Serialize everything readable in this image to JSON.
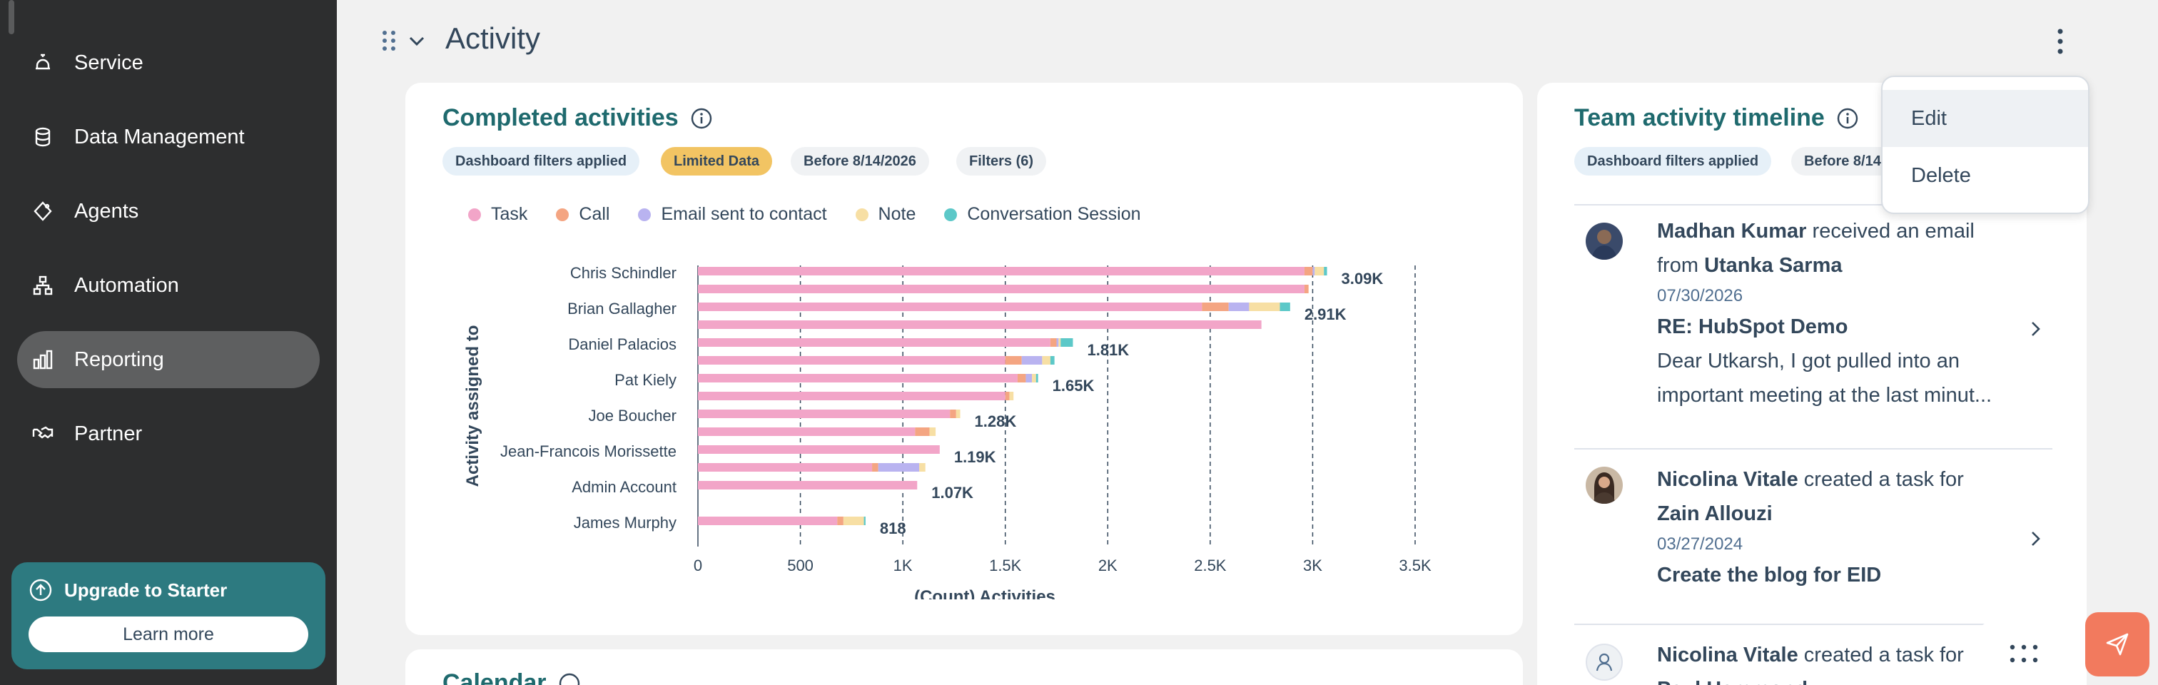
{
  "sidebar": {
    "items": [
      {
        "label": "Service",
        "icon": "bell-icon"
      },
      {
        "label": "Data Management",
        "icon": "database-icon"
      },
      {
        "label": "Agents",
        "icon": "diamond-icon"
      },
      {
        "label": "Automation",
        "icon": "workflow-icon"
      },
      {
        "label": "Reporting",
        "icon": "bar-chart-icon",
        "active": true
      },
      {
        "label": "Partner",
        "icon": "handshake-icon"
      }
    ],
    "upgrade": {
      "title": "Upgrade to Starter",
      "button": "Learn more"
    }
  },
  "section": {
    "title": "Activity"
  },
  "completed_card": {
    "title": "Completed activities",
    "chips": [
      "Dashboard filters applied",
      "Limited Data",
      "Before 8/14/2026",
      "Filters (6)"
    ]
  },
  "timeline_card": {
    "title": "Team activity timeline",
    "chips": [
      "Dashboard filters applied",
      "Before 8/14"
    ],
    "items": [
      {
        "actor": "Madhan Kumar",
        "action": "received an email",
        "prep": "from",
        "target": "Utanka Sarma",
        "date": "07/30/2026",
        "subject": "RE: HubSpot Demo",
        "body1": "Dear Utkarsh,   I got pulled into an",
        "body2": "important meeting at the last minut..."
      },
      {
        "actor": "Nicolina Vitale",
        "action": "created a task for",
        "target": "Zain Allouzi",
        "date": "03/27/2024",
        "subject": "Create the blog for EID"
      },
      {
        "actor": "Nicolina Vitale",
        "action": "created a task for",
        "target": "Paul Hammond"
      }
    ]
  },
  "dropdown": {
    "items": [
      "Edit",
      "Delete"
    ]
  },
  "calendar_card": {
    "title": "Calendar"
  },
  "colors": {
    "task": "#f2a5c8",
    "call": "#f4a582",
    "email": "#b9b3f0",
    "note": "#f7dfa4",
    "conversation": "#5cc8c8",
    "accent": "#1f6a6e",
    "sidebar": "#2d2e2f"
  },
  "chart_data": {
    "type": "bar",
    "orientation": "horizontal",
    "stacked": true,
    "xlabel": "(Count) Activities",
    "ylabel": "Activity assigned to",
    "xlim": [
      0,
      3500
    ],
    "xticks": [
      0,
      500,
      1000,
      1500,
      2000,
      2500,
      3000,
      3500
    ],
    "xtick_labels": [
      "0",
      "500",
      "1K",
      "1.5K",
      "2K",
      "2.5K",
      "3K",
      "3.5K"
    ],
    "legend": [
      "Task",
      "Call",
      "Email sent to contact",
      "Note",
      "Conversation Session"
    ],
    "legend_position": "top",
    "grid": true,
    "categories": [
      "Chris Schindler",
      "Brian Gallagher",
      "Daniel Palacios",
      "Pat Kiely",
      "Joe Boucher",
      "Jean-Francois Morissette",
      "Admin Account",
      "James Murphy"
    ],
    "total_labels": [
      "3.09K",
      "2.91K",
      "1.81K",
      "1.65K",
      "1.28K",
      "1.19K",
      "1.07K",
      "818"
    ],
    "bars": [
      {
        "owner": 0,
        "segments": [
          2960,
          40,
          10,
          45,
          15
        ]
      },
      {
        "owner": 0,
        "segments": [
          2960,
          20,
          0,
          0,
          0
        ]
      },
      {
        "owner": 1,
        "segments": [
          2460,
          130,
          100,
          150,
          50
        ]
      },
      {
        "owner": 1,
        "segments": [
          2750,
          0,
          0,
          0,
          0
        ]
      },
      {
        "owner": 2,
        "segments": [
          1720,
          30,
          10,
          10,
          60
        ]
      },
      {
        "owner": 2,
        "segments": [
          1500,
          80,
          100,
          40,
          20
        ]
      },
      {
        "owner": 3,
        "segments": [
          1560,
          40,
          30,
          20,
          10
        ]
      },
      {
        "owner": 3,
        "segments": [
          1500,
          20,
          0,
          20,
          0
        ]
      },
      {
        "owner": 4,
        "segments": [
          1230,
          30,
          0,
          20,
          0
        ]
      },
      {
        "owner": 4,
        "segments": [
          1060,
          70,
          0,
          30,
          0
        ]
      },
      {
        "owner": 5,
        "segments": [
          1180,
          0,
          0,
          0,
          0
        ]
      },
      {
        "owner": 5,
        "segments": [
          850,
          30,
          200,
          30,
          0
        ]
      },
      {
        "owner": 6,
        "segments": [
          1070,
          0,
          0,
          0,
          0
        ]
      },
      {
        "owner": 6,
        "segments": [
          0,
          0,
          0,
          0,
          0
        ]
      },
      {
        "owner": 7,
        "segments": [
          680,
          30,
          0,
          100,
          8
        ]
      },
      {
        "owner": 7,
        "segments": [
          0,
          0,
          0,
          0,
          0
        ]
      }
    ]
  }
}
